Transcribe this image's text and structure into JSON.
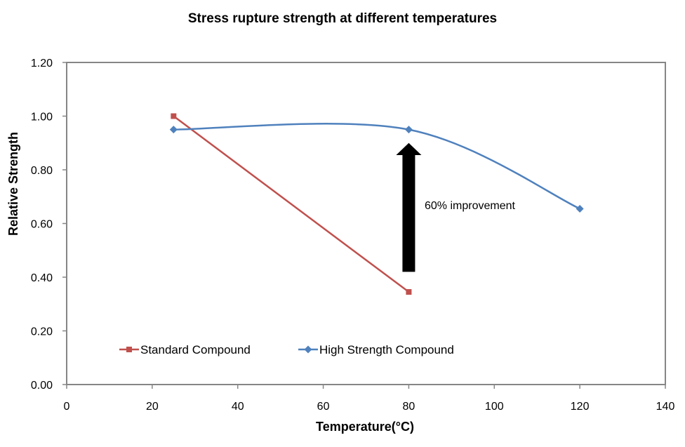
{
  "chart_data": {
    "type": "line",
    "title": "Stress rupture strength at different temperatures",
    "xlabel": "Temperature(°C)",
    "ylabel": "Relative Strength",
    "xlim": [
      0,
      140
    ],
    "ylim": [
      0,
      1.2
    ],
    "x_ticks": [
      "0",
      "20",
      "40",
      "60",
      "80",
      "100",
      "120",
      "140"
    ],
    "y_ticks": [
      "0.00",
      "0.20",
      "0.40",
      "0.60",
      "0.80",
      "1.00",
      "1.20"
    ],
    "grid": false,
    "legend_position": "bottom-left inside",
    "series": [
      {
        "name": "Standard Compound",
        "color": "#C0504D",
        "marker": "square",
        "smooth": false,
        "x": [
          25,
          80
        ],
        "y": [
          1.0,
          0.345
        ]
      },
      {
        "name": "High Strength Compound",
        "color": "#4F81BD",
        "marker": "diamond",
        "smooth": true,
        "x": [
          25,
          80,
          120
        ],
        "y": [
          0.95,
          0.95,
          0.655
        ]
      }
    ],
    "annotations": [
      {
        "text": "60% improvement",
        "arrow_color": "#000000",
        "arrow_direction": "up"
      }
    ]
  }
}
